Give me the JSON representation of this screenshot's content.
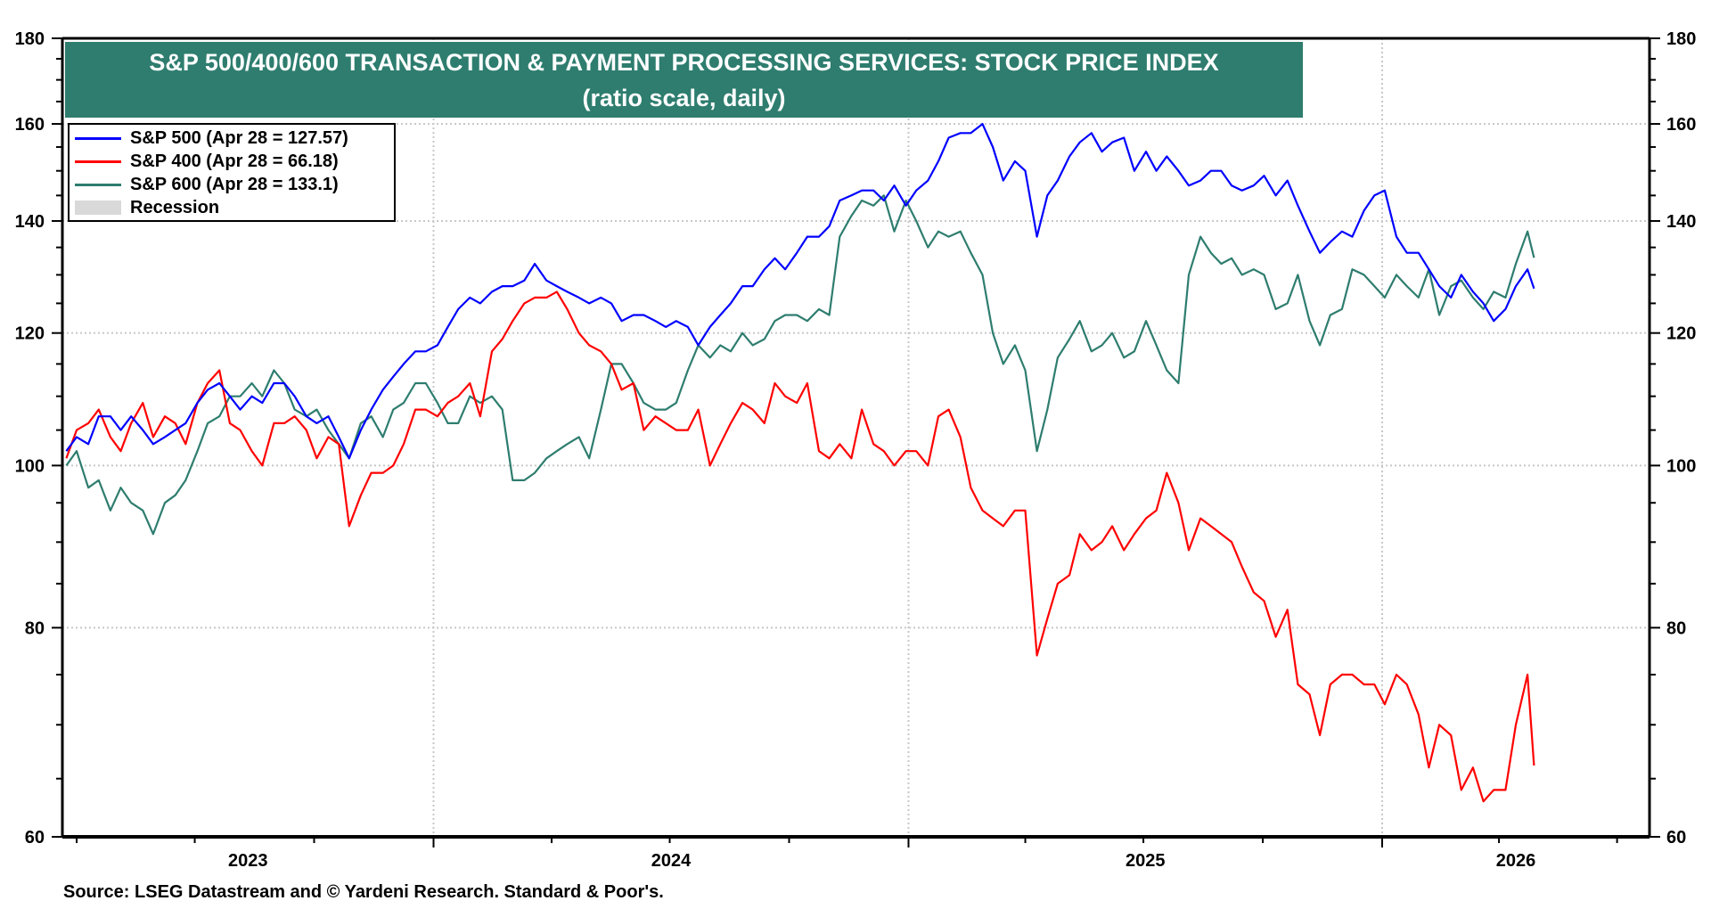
{
  "chart_data": {
    "type": "line",
    "title": "S&P 500/400/600 TRANSACTION & PAYMENT PROCESSING SERVICES: STOCK PRICE INDEX",
    "subtitle": "(ratio scale, daily)",
    "xlabel": "",
    "ylabel": "",
    "y_scale": "log",
    "ylim": [
      60,
      180
    ],
    "y_ticks": [
      60,
      80,
      100,
      120,
      140,
      160,
      180
    ],
    "y_tick_labels": [
      "60",
      "80",
      "100",
      "120",
      "140",
      "160",
      "180"
    ],
    "xlim": [
      "2023-03-21",
      "2026-07-26"
    ],
    "x_tick_labels": [
      "2023",
      "2024",
      "2025",
      "2026"
    ],
    "x_major_ticks": [
      "2024-01-01",
      "2025-01-01",
      "2026-01-01"
    ],
    "grid": true,
    "legend_placement": "top-left",
    "source": "Source: LSEG Datastream and © Yardeni Research. Standard & Poor's.",
    "x": [
      "2023-03-24",
      "2023-04-01",
      "2023-04-10",
      "2023-04-18",
      "2023-04-27",
      "2023-05-05",
      "2023-05-13",
      "2023-05-22",
      "2023-05-30",
      "2023-06-08",
      "2023-06-16",
      "2023-06-24",
      "2023-07-03",
      "2023-07-11",
      "2023-07-20",
      "2023-07-28",
      "2023-08-05",
      "2023-08-14",
      "2023-08-22",
      "2023-08-31",
      "2023-09-08",
      "2023-09-16",
      "2023-09-25",
      "2023-10-03",
      "2023-10-12",
      "2023-10-20",
      "2023-10-28",
      "2023-11-06",
      "2023-11-14",
      "2023-11-23",
      "2023-12-01",
      "2023-12-09",
      "2023-12-18",
      "2023-12-26",
      "2024-01-04",
      "2024-01-12",
      "2024-01-20",
      "2024-01-29",
      "2024-02-06",
      "2024-02-15",
      "2024-02-23",
      "2024-03-02",
      "2024-03-11",
      "2024-03-19",
      "2024-03-28",
      "2024-04-05",
      "2024-04-13",
      "2024-04-22",
      "2024-04-30",
      "2024-05-09",
      "2024-05-17",
      "2024-05-25",
      "2024-06-03",
      "2024-06-11",
      "2024-06-20",
      "2024-06-28",
      "2024-07-06",
      "2024-07-15",
      "2024-07-23",
      "2024-08-01",
      "2024-08-09",
      "2024-08-17",
      "2024-08-26",
      "2024-09-03",
      "2024-09-12",
      "2024-09-20",
      "2024-09-28",
      "2024-10-07",
      "2024-10-15",
      "2024-10-24",
      "2024-11-01",
      "2024-11-09",
      "2024-11-18",
      "2024-11-26",
      "2024-12-05",
      "2024-12-13",
      "2024-12-21",
      "2024-12-30",
      "2025-01-07",
      "2025-01-16",
      "2025-01-24",
      "2025-02-01",
      "2025-02-10",
      "2025-02-18",
      "2025-02-27",
      "2025-03-07",
      "2025-03-15",
      "2025-03-24",
      "2025-04-01",
      "2025-04-10",
      "2025-04-18",
      "2025-04-26",
      "2025-05-05",
      "2025-05-13",
      "2025-05-22",
      "2025-05-30",
      "2025-06-07",
      "2025-06-16",
      "2025-06-24",
      "2025-07-03",
      "2025-07-11",
      "2025-07-19",
      "2025-07-28",
      "2025-08-05",
      "2025-08-14",
      "2025-08-22",
      "2025-08-30",
      "2025-09-07",
      "2025-09-15",
      "2025-09-24",
      "2025-10-02",
      "2025-10-11",
      "2025-10-20",
      "2025-10-28",
      "2025-11-06",
      "2025-11-14",
      "2025-11-22",
      "2025-12-01",
      "2025-12-09",
      "2025-12-18",
      "2025-12-26",
      "2026-01-03",
      "2026-01-12",
      "2026-01-20",
      "2026-01-29",
      "2026-02-06",
      "2026-02-14",
      "2026-02-23",
      "2026-03-03",
      "2026-03-12",
      "2026-03-20",
      "2026-03-28",
      "2026-04-06",
      "2026-04-14",
      "2026-04-23",
      "2026-04-28"
    ],
    "series": [
      {
        "name": "S&P 500 (Apr 28 = 127.57)",
        "color": "#0000ff",
        "values": [
          102,
          104,
          103,
          107,
          107,
          105,
          107,
          105,
          103,
          104,
          105,
          106,
          109,
          111,
          112,
          110,
          108,
          110,
          109,
          112,
          112,
          110,
          107,
          106,
          107,
          104,
          101,
          105,
          108,
          111,
          113,
          115,
          117,
          117,
          118,
          121,
          124,
          126,
          125,
          127,
          128,
          128,
          129,
          132,
          129,
          128,
          127,
          126,
          125,
          126,
          125,
          122,
          123,
          123,
          122,
          121,
          122,
          121,
          118,
          121,
          123,
          125,
          128,
          128,
          131,
          133,
          131,
          134,
          137,
          137,
          139,
          144,
          145,
          146,
          146,
          144,
          147,
          143,
          146,
          148,
          152,
          157,
          158,
          158,
          160,
          155,
          148,
          152,
          150,
          137,
          145,
          148,
          153,
          156,
          158,
          154,
          156,
          157,
          150,
          154,
          150,
          153,
          150,
          147,
          148,
          150,
          150,
          147,
          146,
          147,
          149,
          145,
          148,
          143,
          138,
          134,
          136,
          138,
          137,
          142,
          145,
          146,
          137,
          134,
          134,
          131,
          128,
          126,
          130,
          127,
          125,
          122,
          124,
          128,
          131,
          127.57
        ]
      },
      {
        "name": "S&P 400 (Apr 28 = 66.18)",
        "color": "#ff0000",
        "values": [
          101,
          105,
          106,
          108,
          104,
          102,
          106,
          109,
          104,
          107,
          106,
          103,
          109,
          112,
          114,
          106,
          105,
          102,
          100,
          106,
          106,
          107,
          105,
          101,
          104,
          103,
          92,
          96,
          99,
          99,
          100,
          103,
          108,
          108,
          107,
          109,
          110,
          112,
          107,
          117,
          119,
          122,
          125,
          126,
          126,
          127,
          124,
          120,
          118,
          117,
          115,
          111,
          112,
          105,
          107,
          106,
          105,
          105,
          108,
          100,
          103,
          106,
          109,
          108,
          106,
          112,
          110,
          109,
          112,
          102,
          101,
          103,
          101,
          108,
          103,
          102,
          100,
          102,
          102,
          100,
          107,
          108,
          104,
          97,
          94,
          93,
          92,
          94,
          94,
          77,
          81,
          85,
          86,
          91,
          89,
          90,
          92,
          89,
          91,
          93,
          94,
          99,
          95,
          89,
          93,
          92,
          91,
          90,
          87,
          84,
          83,
          79,
          82,
          74,
          73,
          69,
          74,
          75,
          75,
          74,
          74,
          72,
          75,
          74,
          71,
          66,
          70,
          69,
          64,
          66,
          63,
          64,
          64,
          70,
          75,
          66.18
        ]
      },
      {
        "name": "S&P 600 (Apr 28 = 133.1)",
        "color": "#2e7d6f",
        "values": [
          100,
          102,
          97,
          98,
          94,
          97,
          95,
          94,
          91,
          95,
          96,
          98,
          102,
          106,
          107,
          110,
          110,
          112,
          110,
          114,
          112,
          108,
          107,
          108,
          105,
          103,
          101,
          106,
          107,
          104,
          108,
          109,
          112,
          112,
          109,
          106,
          106,
          110,
          109,
          110,
          108,
          98,
          98,
          99,
          101,
          102,
          103,
          104,
          101,
          108,
          115,
          115,
          112,
          109,
          108,
          108,
          109,
          114,
          118,
          116,
          118,
          117,
          120,
          118,
          119,
          122,
          123,
          123,
          122,
          124,
          123,
          137,
          141,
          144,
          143,
          145,
          138,
          144,
          140,
          135,
          138,
          137,
          138,
          134,
          130,
          120,
          115,
          118,
          114,
          102,
          108,
          116,
          119,
          122,
          117,
          118,
          120,
          116,
          117,
          122,
          118,
          114,
          112,
          130,
          137,
          134,
          132,
          133,
          130,
          131,
          130,
          124,
          125,
          130,
          122,
          118,
          123,
          124,
          131,
          130,
          128,
          126,
          130,
          128,
          126,
          131,
          123,
          128,
          129,
          126,
          124,
          127,
          126,
          132,
          138,
          133.1
        ]
      }
    ],
    "legend_extra": {
      "label": "Recession",
      "color": "#d9d9d9"
    }
  }
}
